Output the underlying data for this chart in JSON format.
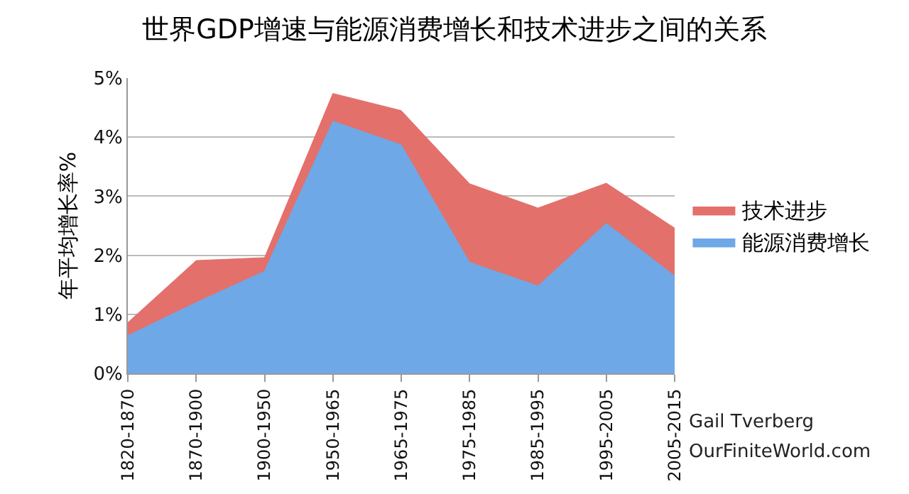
{
  "chart_data": {
    "type": "area",
    "stacked": true,
    "title": "世界GDP增速与能源消费增长和技术进步之间的关系",
    "ylabel": "年平均增长率%",
    "categories": [
      "1820-1870",
      "1870-1900",
      "1900-1950",
      "1950-1965",
      "1965-1975",
      "1975-1985",
      "1985-1995",
      "1995-2005",
      "2005-2015"
    ],
    "series": [
      {
        "name": "能源消费增长",
        "color": "#6fa8e6",
        "values": [
          0.64,
          1.2,
          1.73,
          4.27,
          3.87,
          1.88,
          1.48,
          2.54,
          1.65
        ]
      },
      {
        "name": "技术进步",
        "color": "#e3706b",
        "values": [
          0.22,
          0.71,
          0.23,
          0.47,
          0.58,
          1.33,
          1.32,
          0.68,
          0.81
        ]
      }
    ],
    "ylim": [
      0,
      5
    ],
    "yticks": [
      {
        "value": 0,
        "label": "0%"
      },
      {
        "value": 1,
        "label": "1%"
      },
      {
        "value": 2,
        "label": "2%"
      },
      {
        "value": 3,
        "label": "3%"
      },
      {
        "value": 4,
        "label": "4%"
      },
      {
        "value": 5,
        "label": "5%"
      }
    ],
    "grid": "y",
    "legend": "right",
    "annotations": [
      "Gail Tverberg",
      "OurFiniteWorld.com"
    ]
  }
}
